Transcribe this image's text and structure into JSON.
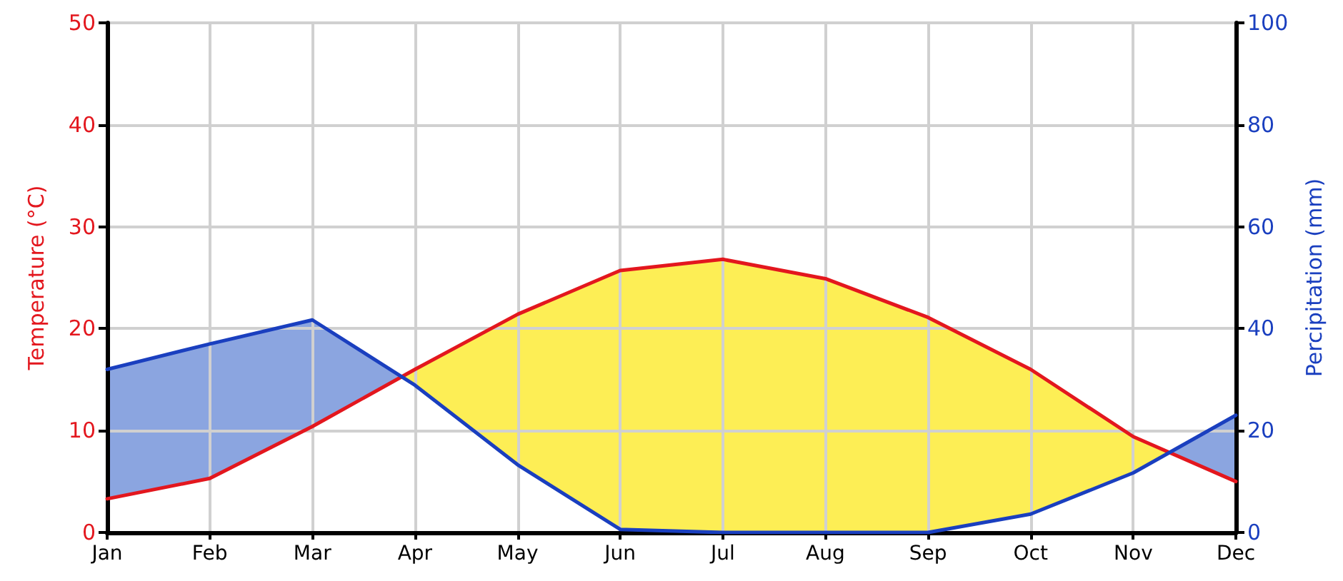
{
  "chart_data": {
    "type": "line",
    "categories": [
      "Jan",
      "Feb",
      "Mar",
      "Apr",
      "May",
      "Jun",
      "Jul",
      "Aug",
      "Sep",
      "Oct",
      "Nov",
      "Dec"
    ],
    "series": [
      {
        "color": "#e3171e",
        "values": [
          3.3,
          5.3,
          10.4,
          16,
          21.4,
          25.7,
          26.8,
          24.9,
          21.1,
          16,
          9.4,
          5
        ]
      },
      {
        "color": "#1a3fbf",
        "axis": "y2",
        "values": [
          32,
          37,
          41.7,
          28.9,
          13.3,
          0.6,
          0,
          0,
          0,
          3.6,
          11.7,
          23
        ]
      }
    ],
    "ylabel": "Temperature (°C)",
    "y2label": "Percipitation (mm)",
    "ylim": [
      0,
      50
    ],
    "yticks": [
      0,
      10,
      20,
      30,
      40,
      50
    ],
    "y2lim": [
      0,
      100
    ],
    "y2ticks": [
      0,
      20,
      40,
      60,
      80,
      100
    ],
    "grid": true,
    "legend": false,
    "marker": "none",
    "line_style": "solid"
  }
}
